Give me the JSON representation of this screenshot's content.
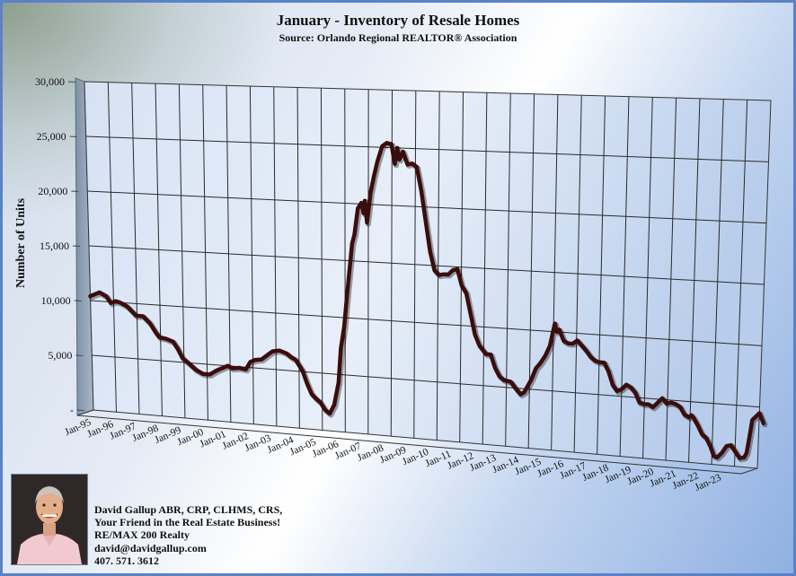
{
  "chart_data": {
    "type": "line",
    "title": "January - Inventory of Resale Homes",
    "subtitle": "Source: Orlando Regional REALTOR® Association",
    "ylabel": "Number of Units",
    "xlabel": "",
    "ylim": [
      0,
      30000
    ],
    "yticks": [
      "-",
      "5,000",
      "10,000",
      "15,000",
      "20,000",
      "25,000",
      "30,000"
    ],
    "ytick_values": [
      0,
      5000,
      10000,
      15000,
      20000,
      25000,
      30000
    ],
    "xticks": [
      "Jan-95",
      "Jan-96",
      "Jan-97",
      "Jan-98",
      "Jan-99",
      "Jan-00",
      "Jan-01",
      "Jan-02",
      "Jan-03",
      "Jan-04",
      "Jan-05",
      "Jan-06",
      "Jan-07",
      "Jan-08",
      "Jan-09",
      "Jan-10",
      "Jan-11",
      "Jan-12",
      "Jan-13",
      "Jan-14",
      "Jan-15",
      "Jan-16",
      "Jan-17",
      "Jan-18",
      "Jan-19",
      "Jan-20",
      "Jan-21",
      "Jan-22",
      "Jan-23"
    ],
    "xlim": [
      1995.0,
      2024.5
    ],
    "grid": true,
    "legend": "none",
    "series": [
      {
        "color": "#3a0d0d",
        "points": [
          [
            1995.0,
            10400
          ],
          [
            1995.4,
            10800
          ],
          [
            1995.7,
            10500
          ],
          [
            1995.9,
            9900
          ],
          [
            1996.1,
            10100
          ],
          [
            1996.3,
            10000
          ],
          [
            1996.6,
            9700
          ],
          [
            1996.8,
            9300
          ],
          [
            1997.0,
            8900
          ],
          [
            1997.3,
            8900
          ],
          [
            1997.6,
            8300
          ],
          [
            1997.85,
            7500
          ],
          [
            1998.0,
            7100
          ],
          [
            1998.3,
            7000
          ],
          [
            1998.6,
            6800
          ],
          [
            1998.8,
            6200
          ],
          [
            1999.0,
            5400
          ],
          [
            1999.3,
            4900
          ],
          [
            1999.6,
            4400
          ],
          [
            1999.9,
            4100
          ],
          [
            2000.2,
            4100
          ],
          [
            2000.5,
            4500
          ],
          [
            2000.8,
            4800
          ],
          [
            2001.0,
            5000
          ],
          [
            2001.2,
            4800
          ],
          [
            2001.5,
            4900
          ],
          [
            2001.8,
            4800
          ],
          [
            2002.0,
            5500
          ],
          [
            2002.2,
            5700
          ],
          [
            2002.5,
            5800
          ],
          [
            2002.8,
            6300
          ],
          [
            2003.0,
            6600
          ],
          [
            2003.3,
            6700
          ],
          [
            2003.6,
            6500
          ],
          [
            2003.8,
            6200
          ],
          [
            2004.0,
            6000
          ],
          [
            2004.3,
            5100
          ],
          [
            2004.5,
            4000
          ],
          [
            2004.7,
            3100
          ],
          [
            2004.9,
            2700
          ],
          [
            2005.1,
            2400
          ],
          [
            2005.3,
            1800
          ],
          [
            2005.5,
            1500
          ],
          [
            2005.7,
            2300
          ],
          [
            2005.9,
            4300
          ],
          [
            2006.0,
            7300
          ],
          [
            2006.15,
            9200
          ],
          [
            2006.3,
            12500
          ],
          [
            2006.5,
            16500
          ],
          [
            2006.6,
            17300
          ],
          [
            2006.75,
            19600
          ],
          [
            2006.9,
            20100
          ],
          [
            2007.0,
            19200
          ],
          [
            2007.05,
            20300
          ],
          [
            2007.15,
            18400
          ],
          [
            2007.3,
            21000
          ],
          [
            2007.45,
            22500
          ],
          [
            2007.6,
            23800
          ],
          [
            2007.8,
            25100
          ],
          [
            2008.0,
            25400
          ],
          [
            2008.2,
            25300
          ],
          [
            2008.35,
            23600
          ],
          [
            2008.45,
            25000
          ],
          [
            2008.55,
            24000
          ],
          [
            2008.7,
            24700
          ],
          [
            2008.9,
            23600
          ],
          [
            2009.1,
            23700
          ],
          [
            2009.3,
            23400
          ],
          [
            2009.5,
            21400
          ],
          [
            2009.7,
            18800
          ],
          [
            2009.9,
            16200
          ],
          [
            2010.1,
            14600
          ],
          [
            2010.3,
            14200
          ],
          [
            2010.5,
            14300
          ],
          [
            2010.7,
            14300
          ],
          [
            2010.9,
            14700
          ],
          [
            2011.1,
            14800
          ],
          [
            2011.3,
            13400
          ],
          [
            2011.5,
            12800
          ],
          [
            2011.7,
            11000
          ],
          [
            2011.9,
            9300
          ],
          [
            2012.1,
            8400
          ],
          [
            2012.4,
            7700
          ],
          [
            2012.6,
            7700
          ],
          [
            2012.8,
            6600
          ],
          [
            2013.0,
            5900
          ],
          [
            2013.2,
            5600
          ],
          [
            2013.5,
            5500
          ],
          [
            2013.8,
            4800
          ],
          [
            2013.95,
            4500
          ],
          [
            2014.1,
            4700
          ],
          [
            2014.4,
            5800
          ],
          [
            2014.6,
            6800
          ],
          [
            2014.8,
            7300
          ],
          [
            2015.0,
            7900
          ],
          [
            2015.2,
            8800
          ],
          [
            2015.4,
            10700
          ],
          [
            2015.5,
            10000
          ],
          [
            2015.6,
            10200
          ],
          [
            2015.8,
            9300
          ],
          [
            2016.0,
            9100
          ],
          [
            2016.2,
            9100
          ],
          [
            2016.4,
            9400
          ],
          [
            2016.6,
            9000
          ],
          [
            2016.8,
            8600
          ],
          [
            2017.0,
            8100
          ],
          [
            2017.2,
            7800
          ],
          [
            2017.4,
            7700
          ],
          [
            2017.6,
            7700
          ],
          [
            2017.8,
            7000
          ],
          [
            2018.0,
            5900
          ],
          [
            2018.2,
            5400
          ],
          [
            2018.4,
            5600
          ],
          [
            2018.6,
            6000
          ],
          [
            2018.8,
            5800
          ],
          [
            2019.0,
            5400
          ],
          [
            2019.2,
            4600
          ],
          [
            2019.4,
            4500
          ],
          [
            2019.6,
            4500
          ],
          [
            2019.8,
            4300
          ],
          [
            2020.0,
            4700
          ],
          [
            2020.2,
            5100
          ],
          [
            2020.4,
            4700
          ],
          [
            2020.6,
            4800
          ],
          [
            2020.8,
            4700
          ],
          [
            2021.0,
            4500
          ],
          [
            2021.2,
            3900
          ],
          [
            2021.4,
            3700
          ],
          [
            2021.5,
            3900
          ],
          [
            2021.6,
            3700
          ],
          [
            2021.8,
            3100
          ],
          [
            2022.0,
            2400
          ],
          [
            2022.2,
            2100
          ],
          [
            2022.4,
            1400
          ],
          [
            2022.55,
            700
          ],
          [
            2022.7,
            600
          ],
          [
            2022.9,
            1000
          ],
          [
            2023.1,
            1600
          ],
          [
            2023.3,
            1700
          ],
          [
            2023.5,
            1200
          ],
          [
            2023.7,
            700
          ],
          [
            2023.9,
            800
          ],
          [
            2024.0,
            1200
          ],
          [
            2024.1,
            2500
          ],
          [
            2024.2,
            3900
          ],
          [
            2024.3,
            4100
          ],
          [
            2024.5,
            4500
          ],
          [
            2024.6,
            4100
          ],
          [
            2024.7,
            3700
          ]
        ]
      }
    ]
  },
  "agent": {
    "photo_icon": "agent-portrait",
    "name_line": "David Gallup  ABR, CRP, CLHMS, CRS,",
    "tagline": "Your Friend in the Real Estate Business!",
    "company": "RE/MAX 200 Realty",
    "email": "david@davidgallup.com",
    "phone": "407. 571. 3612"
  }
}
